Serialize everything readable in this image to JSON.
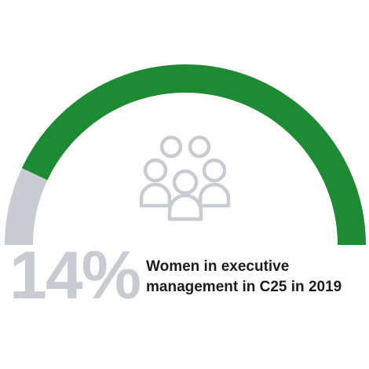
{
  "chart_data": {
    "type": "gauge",
    "value_percent": 14,
    "value_label": "14%",
    "description_lines": [
      "Women in executive",
      "management in C25 in 2019"
    ],
    "colors": {
      "fill": "#1f8a34",
      "remainder": "#c8ccd2",
      "value_text": "#c8ccd2",
      "caption_text": "#1c1c1c",
      "icon": "#c8ccd2"
    }
  },
  "icon": "people-group-icon"
}
